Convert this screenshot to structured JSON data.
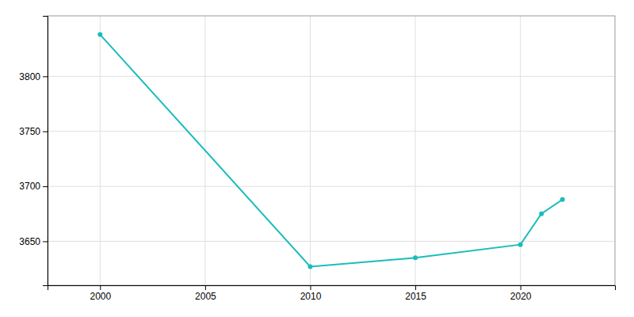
{
  "chart_data": {
    "type": "line",
    "x": [
      2000,
      2010,
      2015,
      2020,
      2021,
      2022
    ],
    "values": [
      3838,
      3627,
      3635,
      3647,
      3675,
      3688
    ],
    "color": "#1ABCBC",
    "marker": "circle",
    "xlim": [
      1997.5,
      2024.5
    ],
    "ylim": [
      3610,
      3855
    ],
    "xticks": [
      2000,
      2005,
      2010,
      2015,
      2020
    ],
    "yticks": [
      3650,
      3700,
      3750,
      3800
    ],
    "grid": true
  }
}
